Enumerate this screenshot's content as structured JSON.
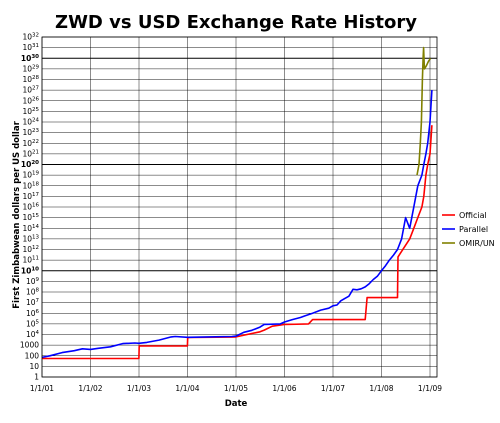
{
  "chart_data": {
    "type": "line",
    "title": "ZWD vs USD Exchange Rate History",
    "xlabel": "Date",
    "ylabel": "First Zimbabwean dollars per US dollar",
    "yscale": "log",
    "ylim_exponent": [
      0,
      32
    ],
    "grid": true,
    "legend_position": "right",
    "x_ticks": [
      "1/1/01",
      "1/1/02",
      "1/1/03",
      "1/1/04",
      "1/1/05",
      "1/1/06",
      "1/1/07",
      "1/1/08",
      "1/1/09"
    ],
    "y_ticks": [
      "1",
      "10",
      "100",
      "1000",
      "10^4",
      "10^5",
      "10^6",
      "10^7",
      "10^8",
      "10^9",
      "10^10",
      "10^11",
      "10^12",
      "10^13",
      "10^14",
      "10^15",
      "10^16",
      "10^17",
      "10^18",
      "10^19",
      "10^20",
      "10^21",
      "10^22",
      "10^23",
      "10^24",
      "10^25",
      "10^26",
      "10^27",
      "10^28",
      "10^29",
      "10^30",
      "10^31",
      "10^32"
    ],
    "bold_exponents": [
      10,
      20,
      30
    ],
    "series": [
      {
        "name": "Official",
        "color": "#ff0000",
        "points": [
          [
            "2001-01-01",
            55
          ],
          [
            "2001-01-01",
            55
          ],
          [
            "2003-01-01",
            55
          ],
          [
            "2003-01-03",
            824
          ],
          [
            "2003-11-01",
            824
          ],
          [
            "2004-01-01",
            824
          ],
          [
            "2004-01-03",
            5200
          ],
          [
            "2004-12-01",
            5700
          ],
          [
            "2005-01-01",
            6000
          ],
          [
            "2005-07-01",
            18000
          ],
          [
            "2005-08-01",
            26000
          ],
          [
            "2005-10-01",
            60000
          ],
          [
            "2006-01-01",
            88000
          ],
          [
            "2006-07-01",
            99000
          ],
          [
            "2006-08-01",
            250000
          ],
          [
            "2007-09-01",
            250000
          ],
          [
            "2007-09-15",
            30000000
          ],
          [
            "2008-05-01",
            30000000
          ],
          [
            "2008-05-05",
            200000000000
          ],
          [
            "2008-08-01",
            10000000000000.0
          ],
          [
            "2008-09-01",
            100000000000000.0
          ],
          [
            "2008-10-01",
            1000000000000000.0
          ],
          [
            "2008-11-01",
            1e+16
          ],
          [
            "2008-11-15",
            1e+17
          ],
          [
            "2008-12-01",
            1e+19
          ],
          [
            "2008-12-15",
            1e+20
          ],
          [
            "2009-01-01",
            1e+21
          ],
          [
            "2009-01-15",
            5e+23
          ]
        ]
      },
      {
        "name": "Parallel",
        "color": "#0000ff",
        "points": [
          [
            "2001-01-01",
            70
          ],
          [
            "2001-03-01",
            100
          ],
          [
            "2001-06-01",
            200
          ],
          [
            "2001-09-01",
            300
          ],
          [
            "2001-11-01",
            450
          ],
          [
            "2002-01-01",
            400
          ],
          [
            "2002-03-01",
            500
          ],
          [
            "2002-06-01",
            700
          ],
          [
            "2002-09-01",
            1400
          ],
          [
            "2002-12-01",
            1600
          ],
          [
            "2003-01-01",
            1500
          ],
          [
            "2003-03-01",
            1800
          ],
          [
            "2003-06-01",
            3000
          ],
          [
            "2003-09-01",
            6000
          ],
          [
            "2003-10-01",
            6500
          ],
          [
            "2004-01-01",
            5500
          ],
          [
            "2004-06-01",
            6000
          ],
          [
            "2004-12-01",
            6500
          ],
          [
            "2005-01-01",
            7000
          ],
          [
            "2005-03-01",
            16000
          ],
          [
            "2005-05-01",
            25000
          ],
          [
            "2005-07-01",
            50000
          ],
          [
            "2005-08-01",
            90000
          ],
          [
            "2005-12-01",
            100000
          ],
          [
            "2006-01-01",
            150000
          ],
          [
            "2006-03-01",
            250000
          ],
          [
            "2006-05-01",
            400000
          ],
          [
            "2006-06-01",
            550000
          ],
          [
            "2006-08-01",
            1000000
          ],
          [
            "2006-10-01",
            2000000
          ],
          [
            "2006-12-01",
            3000000
          ],
          [
            "2007-01-01",
            5000000
          ],
          [
            "2007-02-01",
            6000000
          ],
          [
            "2007-03-01",
            15000000
          ],
          [
            "2007-04-01",
            25000000
          ],
          [
            "2007-05-01",
            40000000
          ],
          [
            "2007-06-01",
            180000000
          ],
          [
            "2007-07-01",
            160000000
          ],
          [
            "2007-08-01",
            200000000
          ],
          [
            "2007-09-01",
            300000000
          ],
          [
            "2007-10-01",
            600000000
          ],
          [
            "2007-11-01",
            1500000000
          ],
          [
            "2007-12-01",
            3000000000
          ],
          [
            "2008-01-01",
            10000000000
          ],
          [
            "2008-02-01",
            30000000000
          ],
          [
            "2008-03-01",
            100000000000
          ],
          [
            "2008-04-01",
            300000000000
          ],
          [
            "2008-05-01",
            1000000000000
          ],
          [
            "2008-06-01",
            10000000000000.0
          ],
          [
            "2008-07-01",
            1000000000000000.0
          ],
          [
            "2008-08-01",
            100000000000000.0
          ],
          [
            "2008-09-01",
            1e+16
          ],
          [
            "2008-10-01",
            1e+18
          ],
          [
            "2008-11-01",
            1e+19
          ],
          [
            "2008-11-15",
            1e+20
          ],
          [
            "2008-12-01",
            1e+21
          ],
          [
            "2008-12-15",
            1e+22
          ],
          [
            "2009-01-01",
            1e+24
          ],
          [
            "2009-01-15",
            1e+27
          ]
        ]
      },
      {
        "name": "OMIR/UN",
        "color": "#808000",
        "points": [
          [
            "2008-09-25",
            1e+19
          ],
          [
            "2008-10-10",
            1e+20
          ],
          [
            "2008-10-20",
            1e+22
          ],
          [
            "2008-10-28",
            1e+24
          ],
          [
            "2008-11-05",
            1e+28
          ],
          [
            "2008-11-10",
            1e+30
          ],
          [
            "2008-11-14",
            1e+31
          ],
          [
            "2008-11-20",
            1e+29
          ],
          [
            "2008-12-05",
            2e+29
          ],
          [
            "2008-12-20",
            5e+29
          ],
          [
            "2009-01-05",
            1e+30
          ]
        ]
      }
    ]
  }
}
